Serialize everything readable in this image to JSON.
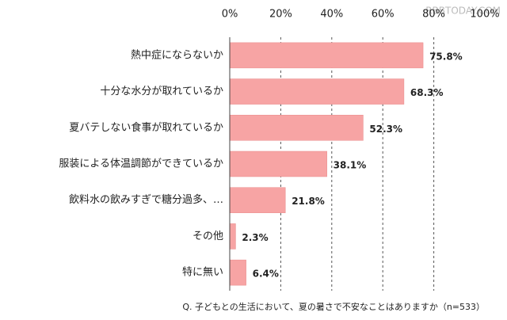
{
  "chart_data": {
    "type": "bar",
    "orientation": "horizontal",
    "categories": [
      "熱中症にならないか",
      "十分な水分が取れているか",
      "夏バテしない食事が取れているか",
      "服装による体温調節ができているか",
      "飲料水の飲みすぎで糖分過多、…",
      "その他",
      "特に無い"
    ],
    "values": [
      75.8,
      68.3,
      52.3,
      38.1,
      21.8,
      2.3,
      6.4
    ],
    "value_labels": [
      "75.8%",
      "68.3%",
      "52.3%",
      "38.1%",
      "21.8%",
      "2.3%",
      "6.4%"
    ],
    "color": "#f7a4a4",
    "xlim": [
      0,
      100
    ],
    "xticks": [
      {
        "value": 0,
        "label": "0%"
      },
      {
        "value": 20,
        "label": "20%"
      },
      {
        "value": 40,
        "label": "40%"
      },
      {
        "value": 60,
        "label": "60%"
      },
      {
        "value": 80,
        "label": "80%"
      },
      {
        "value": 100,
        "label": "100%"
      }
    ],
    "grid": true,
    "note": "Q. 子どもとの生活において、夏の暑さで不安なことはありますか（n=533）",
    "watermark": "RBBTODAY.COM"
  }
}
